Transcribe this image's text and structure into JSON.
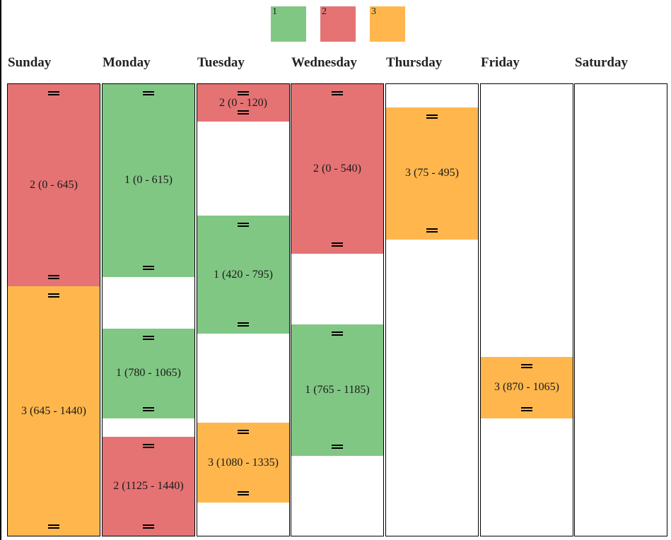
{
  "legend": [
    {
      "label": "1",
      "color": "#81c784"
    },
    {
      "label": "2",
      "color": "#e57373"
    },
    {
      "label": "3",
      "color": "#ffb74d"
    }
  ],
  "days": [
    {
      "name": "Sunday",
      "events": [
        {
          "category": 2,
          "start": 0,
          "end": 645,
          "label": "2 (0 - 645)"
        },
        {
          "category": 3,
          "start": 645,
          "end": 1440,
          "label": "3 (645 - 1440)"
        }
      ]
    },
    {
      "name": "Monday",
      "events": [
        {
          "category": 1,
          "start": 0,
          "end": 615,
          "label": "1 (0 - 615)"
        },
        {
          "category": 1,
          "start": 780,
          "end": 1065,
          "label": "1 (780 - 1065)"
        },
        {
          "category": 2,
          "start": 1125,
          "end": 1440,
          "label": "2 (1125 - 1440)"
        }
      ]
    },
    {
      "name": "Tuesday",
      "events": [
        {
          "category": 2,
          "start": 0,
          "end": 120,
          "label": "2 (0 - 120)"
        },
        {
          "category": 1,
          "start": 420,
          "end": 795,
          "label": "1 (420 - 795)"
        },
        {
          "category": 3,
          "start": 1080,
          "end": 1335,
          "label": "3 (1080 - 1335)"
        }
      ]
    },
    {
      "name": "Wednesday",
      "events": [
        {
          "category": 2,
          "start": 0,
          "end": 540,
          "label": "2 (0 - 540)"
        },
        {
          "category": 1,
          "start": 765,
          "end": 1185,
          "label": "1 (765 - 1185)"
        }
      ]
    },
    {
      "name": "Thursday",
      "events": [
        {
          "category": 3,
          "start": 75,
          "end": 495,
          "label": "3 (75 - 495)"
        }
      ]
    },
    {
      "name": "Friday",
      "events": [
        {
          "category": 3,
          "start": 870,
          "end": 1065,
          "label": "3 (870 - 1065)"
        }
      ]
    },
    {
      "name": "Saturday",
      "events": []
    }
  ]
}
